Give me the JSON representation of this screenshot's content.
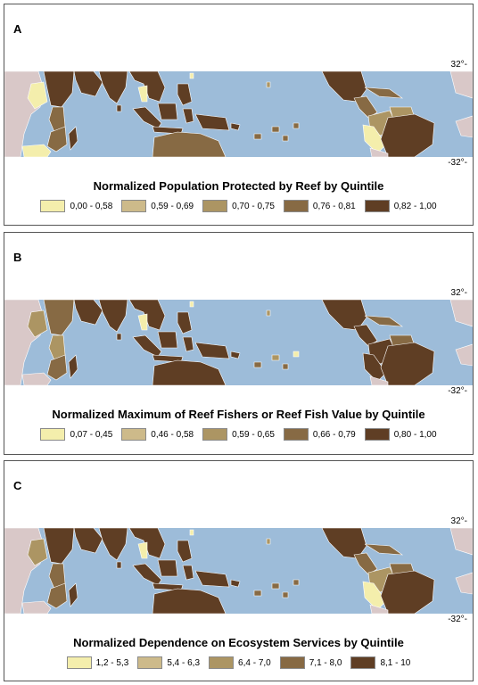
{
  "colors": {
    "ocean": "#9dbcd9",
    "land_neutral": "#d9c8c8",
    "border": "#ffffff"
  },
  "panels": [
    {
      "letter": "A",
      "lat_top": "32°-",
      "lat_bottom": "-32°-",
      "legend_title": "Normalized Population Protected by Reef by Quintile",
      "legend": [
        {
          "label": "0,00 - 0,58",
          "color": "#f4eeac"
        },
        {
          "label": "0,59 - 0,69",
          "color": "#cdba8a"
        },
        {
          "label": "0,70 - 0,75",
          "color": "#ac9563"
        },
        {
          "label": "0,76 - 0,81",
          "color": "#876a44"
        },
        {
          "label": "0,82 - 1,00",
          "color": "#5f3e24"
        }
      ]
    },
    {
      "letter": "B",
      "lat_top": "32°-",
      "lat_bottom": "-32°-",
      "legend_title": "Normalized Maximum of Reef Fishers or Reef Fish Value by Quintile",
      "legend": [
        {
          "label": "0,07 - 0,45",
          "color": "#f4eeac"
        },
        {
          "label": "0,46 - 0,58",
          "color": "#cdba8a"
        },
        {
          "label": "0,59 - 0,65",
          "color": "#ac9563"
        },
        {
          "label": "0,66 - 0,79",
          "color": "#876a44"
        },
        {
          "label": "0,80 - 1,00",
          "color": "#5f3e24"
        }
      ]
    },
    {
      "letter": "C",
      "lat_top": "32°-",
      "lat_bottom": "-32°-",
      "legend_title": "Normalized Dependence on Ecosystem Services by Quintile",
      "legend": [
        {
          "label": "1,2 - 5,3",
          "color": "#f4eeac"
        },
        {
          "label": "5,4 - 6,3",
          "color": "#cdba8a"
        },
        {
          "label": "6,4 - 7,0",
          "color": "#ac9563"
        },
        {
          "label": "7,1 - 8,0",
          "color": "#876a44"
        },
        {
          "label": "8,1 - 10",
          "color": "#5f3e24"
        }
      ]
    }
  ]
}
